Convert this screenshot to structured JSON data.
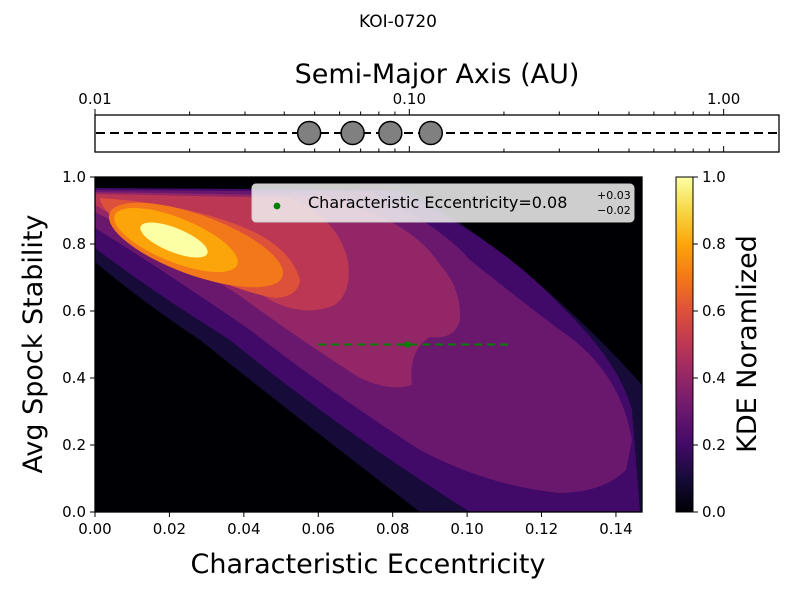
{
  "chart_data": [
    {
      "type": "scatter",
      "title": "KOI-0720",
      "xlabel": "Semi-Major Axis (AU)",
      "xscale": "log",
      "xlim": [
        0.01,
        1.5
      ],
      "xticks": [
        0.01,
        0.1,
        1.0
      ],
      "xtick_labels": [
        "0.01",
        "0.10",
        "1.00"
      ],
      "x_axis_position": "top",
      "reference_line": "dashed",
      "marker_color": "#808080",
      "x": [
        0.048,
        0.066,
        0.087,
        0.117
      ],
      "y": [
        0,
        0,
        0,
        0
      ]
    },
    {
      "type": "heatmap",
      "subtype": "filled-contour",
      "xlabel": "Characteristic Eccentricity",
      "ylabel": "Avg Spock Stability",
      "xlim": [
        0.0,
        0.147
      ],
      "ylim": [
        0.0,
        1.0
      ],
      "xticks": [
        "0.00",
        "0.02",
        "0.04",
        "0.06",
        "0.08",
        "0.10",
        "0.12",
        "0.14"
      ],
      "yticks": [
        "0.0",
        "0.2",
        "0.4",
        "0.6",
        "0.8",
        "1.0"
      ],
      "colormap": "inferno",
      "colorbar": {
        "label": "KDE Noramlized",
        "range": [
          0.0,
          1.0
        ],
        "ticks": [
          "0.0",
          "0.2",
          "0.4",
          "0.6",
          "0.8",
          "1.0"
        ]
      },
      "contour_levels": [
        0.1,
        0.2,
        0.3,
        0.4,
        0.5,
        0.6,
        0.7,
        0.8,
        0.9
      ],
      "peak": {
        "x": 0.022,
        "y": 0.82
      },
      "point": {
        "x": 0.084,
        "y": 0.5,
        "x_err_low": 0.024,
        "x_err_high": 0.027,
        "color": "#008000"
      },
      "legend": {
        "text": "Characteristic Eccentricity=0.08",
        "sup": "+0.03",
        "sub": "−0.02",
        "location": "upper-right"
      },
      "grid": false
    }
  ]
}
